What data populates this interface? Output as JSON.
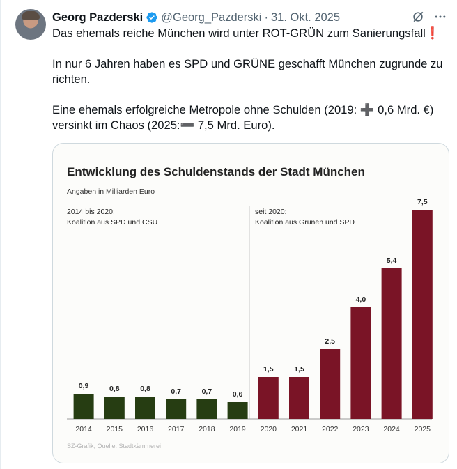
{
  "tweet": {
    "author_name": "Georg Pazderski",
    "handle": "@Georg_Pazderski",
    "separator": "·",
    "date": "31. Okt. 2025",
    "line1": "Das ehemals reiche München wird unter ROT-GRÜN zum Sanierungsfall",
    "line1_emoji": "❗",
    "line2": "In nur 6 Jahren haben es SPD und GRÜNE geschafft München zugrunde zu richten.",
    "line3a": "Eine ehemals erfolgreiche Metropole ohne Schulden (2019:",
    "line3_plus": "➕",
    "line3b": "0,6 Mrd. €)",
    "line4a": "versinkt im Chaos (2025:",
    "line4_minus": "➖",
    "line4b": "7,5 Mrd. Euro)."
  },
  "icons": {
    "verified": "verified-badge-icon",
    "grok": "grok-icon",
    "more": "more-options-icon"
  },
  "colors": {
    "accent": "#1d9bf0",
    "green_bar": "#263d12",
    "red_bar": "#7a1426",
    "excl": "#e0245e"
  },
  "chart_data": {
    "type": "bar",
    "title": "Entwicklung des Schuldenstands der Stadt München",
    "subtitle": "Angaben in Milliarden Euro",
    "categories": [
      "2014",
      "2015",
      "2016",
      "2017",
      "2018",
      "2019",
      "2020",
      "2021",
      "2022",
      "2023",
      "2024",
      "2025"
    ],
    "values": [
      0.9,
      0.8,
      0.8,
      0.7,
      0.7,
      0.6,
      1.5,
      1.5,
      2.5,
      4.0,
      5.4,
      7.5
    ],
    "value_labels": [
      "0,9",
      "0,8",
      "0,8",
      "0,7",
      "0,7",
      "0,6",
      "1,5",
      "1,5",
      "2,5",
      "4,0",
      "5,4",
      "7,5"
    ],
    "period_labels": [
      {
        "line1": "2014 bis 2020:",
        "line2": "Koalition aus SPD und CSU"
      },
      {
        "line1": "seit 2020:",
        "line2": "Koalition aus Grünen und SPD"
      }
    ],
    "colors_per_bar": [
      "#263d12",
      "#263d12",
      "#263d12",
      "#263d12",
      "#263d12",
      "#263d12",
      "#7a1426",
      "#7a1426",
      "#7a1426",
      "#7a1426",
      "#7a1426",
      "#7a1426"
    ],
    "ylim": [
      0,
      7.5
    ],
    "grid": false,
    "source": "SZ-Grafik; Quelle: Stadtkämmerei"
  }
}
